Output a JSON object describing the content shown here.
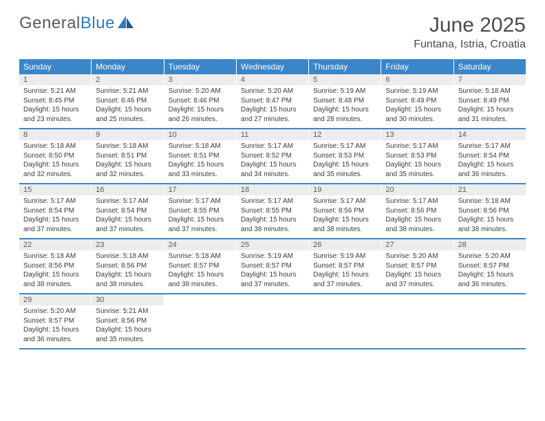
{
  "brand": {
    "part1": "General",
    "part2": "Blue"
  },
  "title": "June 2025",
  "location": "Funtana, Istria, Croatia",
  "colors": {
    "header_bg": "#3a86c8",
    "header_text": "#ffffff",
    "daynum_bg": "#ececec",
    "text": "#3b3b3b",
    "row_border": "#3a86c8"
  },
  "weekdays": [
    "Sunday",
    "Monday",
    "Tuesday",
    "Wednesday",
    "Thursday",
    "Friday",
    "Saturday"
  ],
  "weeks": [
    [
      {
        "num": "1",
        "sunrise": "Sunrise: 5:21 AM",
        "sunset": "Sunset: 8:45 PM",
        "daylight": "Daylight: 15 hours and 23 minutes."
      },
      {
        "num": "2",
        "sunrise": "Sunrise: 5:21 AM",
        "sunset": "Sunset: 8:46 PM",
        "daylight": "Daylight: 15 hours and 25 minutes."
      },
      {
        "num": "3",
        "sunrise": "Sunrise: 5:20 AM",
        "sunset": "Sunset: 8:46 PM",
        "daylight": "Daylight: 15 hours and 26 minutes."
      },
      {
        "num": "4",
        "sunrise": "Sunrise: 5:20 AM",
        "sunset": "Sunset: 8:47 PM",
        "daylight": "Daylight: 15 hours and 27 minutes."
      },
      {
        "num": "5",
        "sunrise": "Sunrise: 5:19 AM",
        "sunset": "Sunset: 8:48 PM",
        "daylight": "Daylight: 15 hours and 28 minutes."
      },
      {
        "num": "6",
        "sunrise": "Sunrise: 5:19 AM",
        "sunset": "Sunset: 8:49 PM",
        "daylight": "Daylight: 15 hours and 30 minutes."
      },
      {
        "num": "7",
        "sunrise": "Sunrise: 5:18 AM",
        "sunset": "Sunset: 8:49 PM",
        "daylight": "Daylight: 15 hours and 31 minutes."
      }
    ],
    [
      {
        "num": "8",
        "sunrise": "Sunrise: 5:18 AM",
        "sunset": "Sunset: 8:50 PM",
        "daylight": "Daylight: 15 hours and 32 minutes."
      },
      {
        "num": "9",
        "sunrise": "Sunrise: 5:18 AM",
        "sunset": "Sunset: 8:51 PM",
        "daylight": "Daylight: 15 hours and 32 minutes."
      },
      {
        "num": "10",
        "sunrise": "Sunrise: 5:18 AM",
        "sunset": "Sunset: 8:51 PM",
        "daylight": "Daylight: 15 hours and 33 minutes."
      },
      {
        "num": "11",
        "sunrise": "Sunrise: 5:17 AM",
        "sunset": "Sunset: 8:52 PM",
        "daylight": "Daylight: 15 hours and 34 minutes."
      },
      {
        "num": "12",
        "sunrise": "Sunrise: 5:17 AM",
        "sunset": "Sunset: 8:53 PM",
        "daylight": "Daylight: 15 hours and 35 minutes."
      },
      {
        "num": "13",
        "sunrise": "Sunrise: 5:17 AM",
        "sunset": "Sunset: 8:53 PM",
        "daylight": "Daylight: 15 hours and 35 minutes."
      },
      {
        "num": "14",
        "sunrise": "Sunrise: 5:17 AM",
        "sunset": "Sunset: 8:54 PM",
        "daylight": "Daylight: 15 hours and 36 minutes."
      }
    ],
    [
      {
        "num": "15",
        "sunrise": "Sunrise: 5:17 AM",
        "sunset": "Sunset: 8:54 PM",
        "daylight": "Daylight: 15 hours and 37 minutes."
      },
      {
        "num": "16",
        "sunrise": "Sunrise: 5:17 AM",
        "sunset": "Sunset: 8:54 PM",
        "daylight": "Daylight: 15 hours and 37 minutes."
      },
      {
        "num": "17",
        "sunrise": "Sunrise: 5:17 AM",
        "sunset": "Sunset: 8:55 PM",
        "daylight": "Daylight: 15 hours and 37 minutes."
      },
      {
        "num": "18",
        "sunrise": "Sunrise: 5:17 AM",
        "sunset": "Sunset: 8:55 PM",
        "daylight": "Daylight: 15 hours and 38 minutes."
      },
      {
        "num": "19",
        "sunrise": "Sunrise: 5:17 AM",
        "sunset": "Sunset: 8:56 PM",
        "daylight": "Daylight: 15 hours and 38 minutes."
      },
      {
        "num": "20",
        "sunrise": "Sunrise: 5:17 AM",
        "sunset": "Sunset: 8:56 PM",
        "daylight": "Daylight: 15 hours and 38 minutes."
      },
      {
        "num": "21",
        "sunrise": "Sunrise: 5:18 AM",
        "sunset": "Sunset: 8:56 PM",
        "daylight": "Daylight: 15 hours and 38 minutes."
      }
    ],
    [
      {
        "num": "22",
        "sunrise": "Sunrise: 5:18 AM",
        "sunset": "Sunset: 8:56 PM",
        "daylight": "Daylight: 15 hours and 38 minutes."
      },
      {
        "num": "23",
        "sunrise": "Sunrise: 5:18 AM",
        "sunset": "Sunset: 8:56 PM",
        "daylight": "Daylight: 15 hours and 38 minutes."
      },
      {
        "num": "24",
        "sunrise": "Sunrise: 5:18 AM",
        "sunset": "Sunset: 8:57 PM",
        "daylight": "Daylight: 15 hours and 38 minutes."
      },
      {
        "num": "25",
        "sunrise": "Sunrise: 5:19 AM",
        "sunset": "Sunset: 8:57 PM",
        "daylight": "Daylight: 15 hours and 37 minutes."
      },
      {
        "num": "26",
        "sunrise": "Sunrise: 5:19 AM",
        "sunset": "Sunset: 8:57 PM",
        "daylight": "Daylight: 15 hours and 37 minutes."
      },
      {
        "num": "27",
        "sunrise": "Sunrise: 5:20 AM",
        "sunset": "Sunset: 8:57 PM",
        "daylight": "Daylight: 15 hours and 37 minutes."
      },
      {
        "num": "28",
        "sunrise": "Sunrise: 5:20 AM",
        "sunset": "Sunset: 8:57 PM",
        "daylight": "Daylight: 15 hours and 36 minutes."
      }
    ],
    [
      {
        "num": "29",
        "sunrise": "Sunrise: 5:20 AM",
        "sunset": "Sunset: 8:57 PM",
        "daylight": "Daylight: 15 hours and 36 minutes."
      },
      {
        "num": "30",
        "sunrise": "Sunrise: 5:21 AM",
        "sunset": "Sunset: 8:56 PM",
        "daylight": "Daylight: 15 hours and 35 minutes."
      },
      null,
      null,
      null,
      null,
      null
    ]
  ]
}
